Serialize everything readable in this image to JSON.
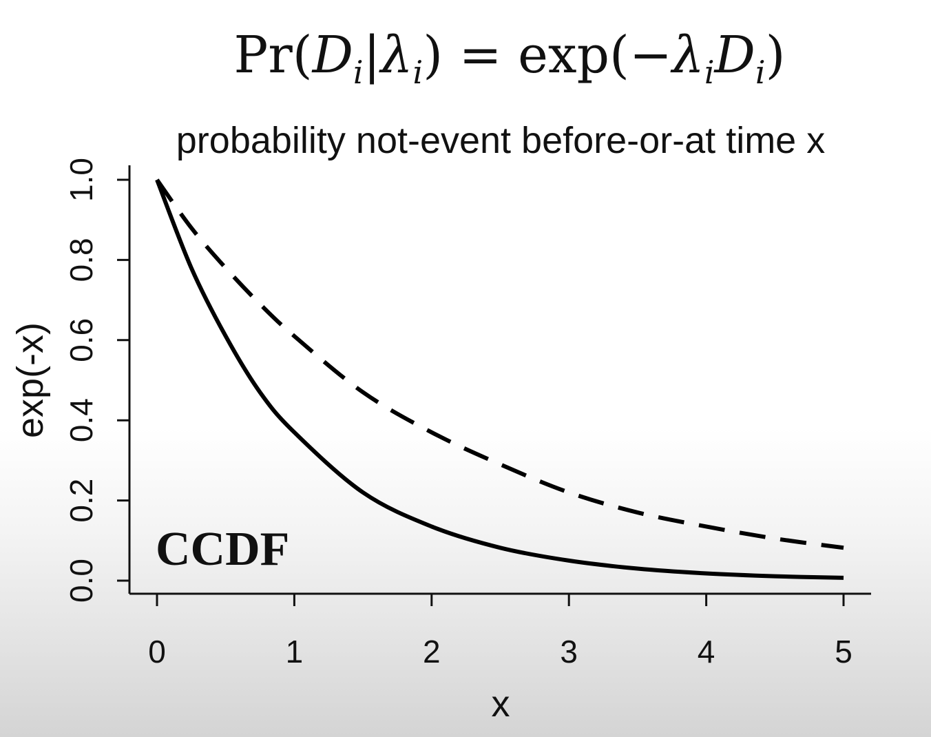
{
  "formula": {
    "prefix": "Pr(",
    "d1": "D",
    "i1": "i",
    "bar": "|",
    "lambda1": "λ",
    "i2": "i",
    "mid": ") = exp(−",
    "lambda2": "λ",
    "i3": "i",
    "d2": "D",
    "i4": "i",
    "suffix": ")"
  },
  "chart_data": {
    "type": "line",
    "title": "probability not-event before-or-at time x",
    "xlabel": "x",
    "ylabel": "exp(-x)",
    "xlim": [
      0,
      5
    ],
    "ylim": [
      0,
      1
    ],
    "x_ticks": [
      "0",
      "1",
      "2",
      "3",
      "4",
      "5"
    ],
    "y_ticks": [
      "0.0",
      "0.2",
      "0.4",
      "0.6",
      "0.8",
      "1.0"
    ],
    "series": [
      {
        "style": "solid",
        "x": [
          0,
          0.25,
          0.5,
          0.75,
          1,
          1.5,
          2,
          2.5,
          3,
          3.5,
          4,
          4.5,
          5
        ],
        "y": [
          1.0,
          0.78,
          0.61,
          0.47,
          0.37,
          0.22,
          0.135,
          0.082,
          0.05,
          0.03,
          0.018,
          0.011,
          0.007
        ]
      },
      {
        "style": "dashed",
        "x": [
          0,
          0.25,
          0.5,
          0.75,
          1,
          1.5,
          2,
          2.5,
          3,
          3.5,
          4,
          4.5,
          5
        ],
        "y": [
          1.0,
          0.88,
          0.78,
          0.69,
          0.61,
          0.47,
          0.37,
          0.29,
          0.22,
          0.17,
          0.135,
          0.105,
          0.082
        ]
      }
    ],
    "annotations": [
      "CCDF"
    ],
    "grid": false,
    "colors": {
      "line": "#000000",
      "axis": "#111111"
    }
  }
}
